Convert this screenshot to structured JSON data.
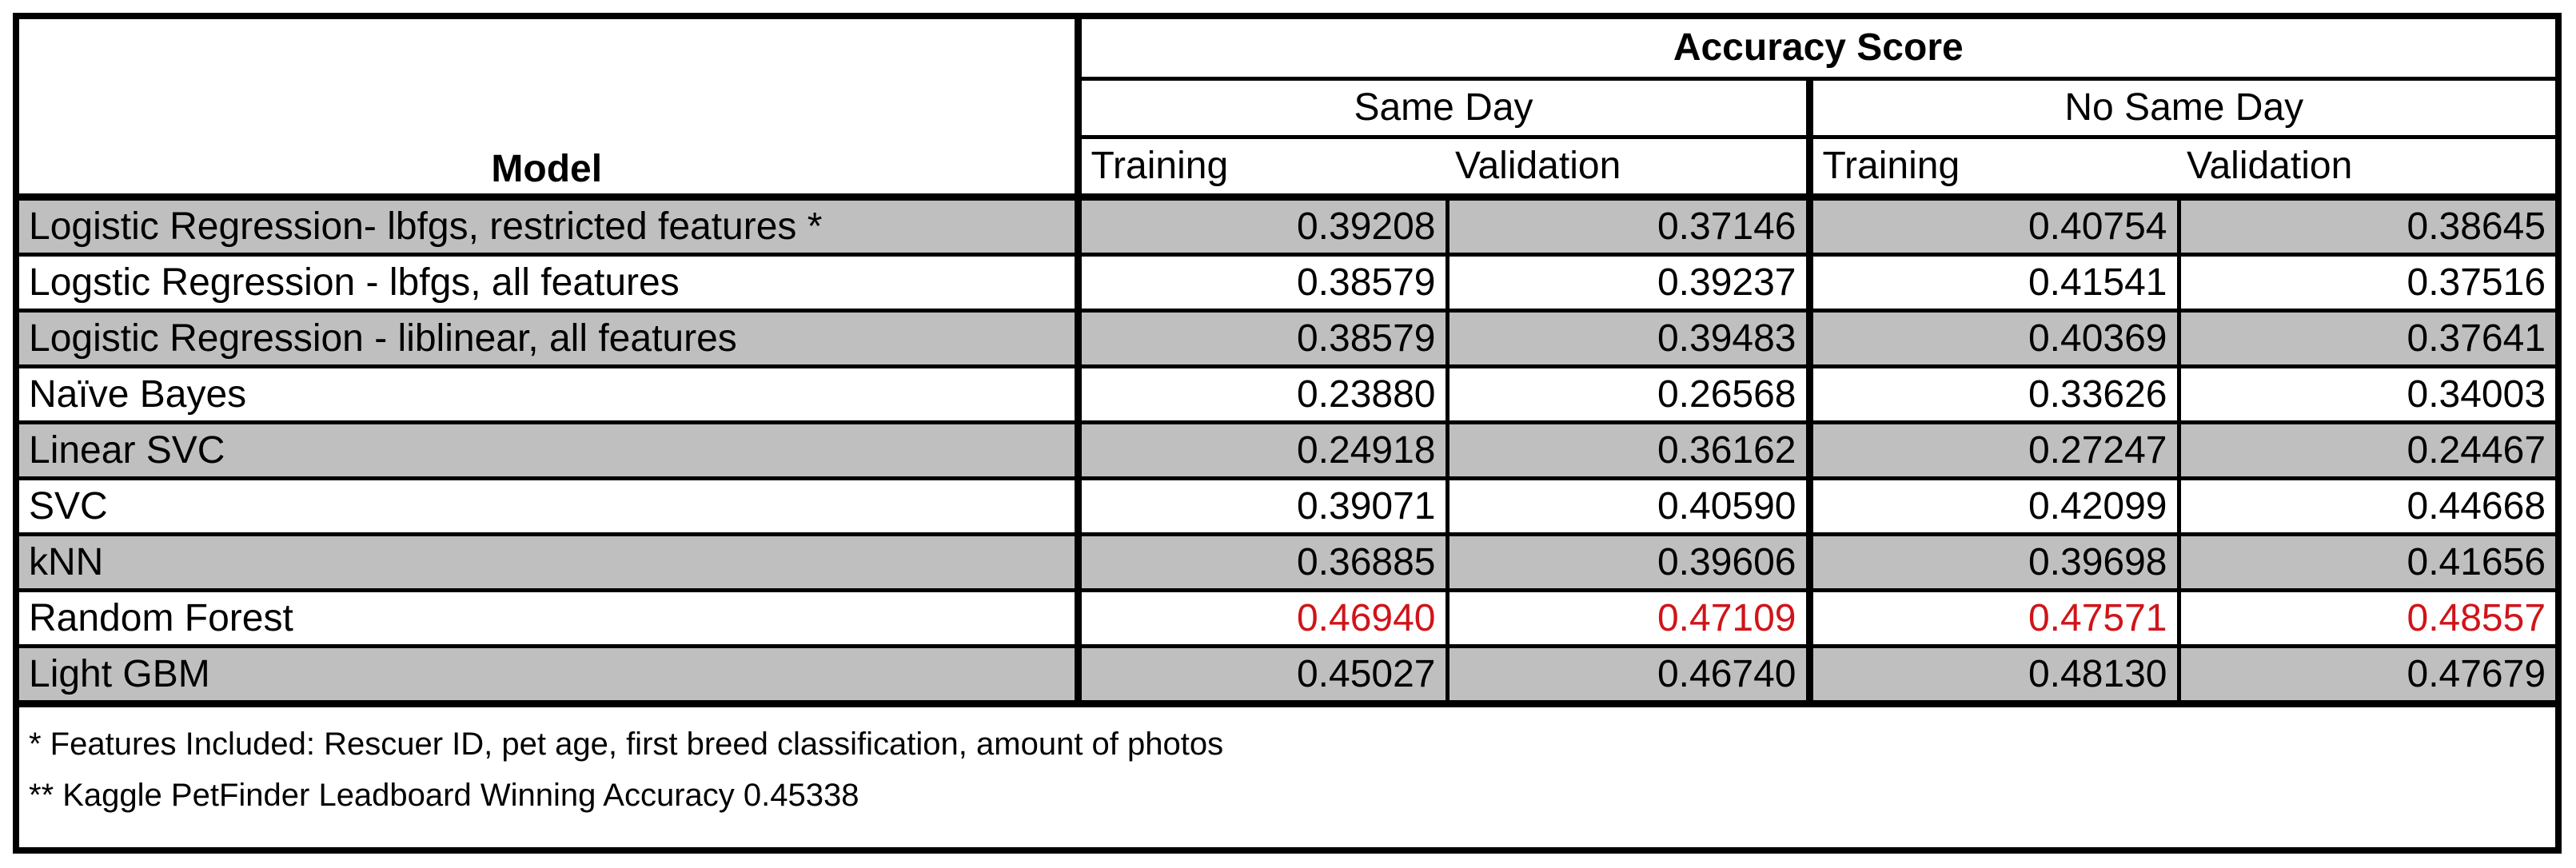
{
  "table": {
    "header": {
      "model": "Model",
      "group_title": "Accuracy Score",
      "subgroups": [
        "Same Day",
        "No Same Day"
      ],
      "columns": [
        "Training",
        "Validation",
        "Training",
        "Validation"
      ]
    },
    "rows": [
      {
        "model": "Logistic Regression- lbfgs, restricted features *",
        "values": [
          "0.39208",
          "0.37146",
          "0.40754",
          "0.38645"
        ],
        "shaded": true,
        "highlight": false
      },
      {
        "model": "Logstic Regression - lbfgs, all features",
        "values": [
          "0.38579",
          "0.39237",
          "0.41541",
          "0.37516"
        ],
        "shaded": false,
        "highlight": false
      },
      {
        "model": "Logistic Regression - liblinear, all features",
        "values": [
          "0.38579",
          "0.39483",
          "0.40369",
          "0.37641"
        ],
        "shaded": true,
        "highlight": false
      },
      {
        "model": "Naïve Bayes",
        "values": [
          "0.23880",
          "0.26568",
          "0.33626",
          "0.34003"
        ],
        "shaded": false,
        "highlight": false
      },
      {
        "model": "Linear SVC",
        "values": [
          "0.24918",
          "0.36162",
          "0.27247",
          "0.24467"
        ],
        "shaded": true,
        "highlight": false
      },
      {
        "model": "SVC",
        "values": [
          "0.39071",
          "0.40590",
          "0.42099",
          "0.44668"
        ],
        "shaded": false,
        "highlight": false
      },
      {
        "model": "kNN",
        "values": [
          "0.36885",
          "0.39606",
          "0.39698",
          "0.41656"
        ],
        "shaded": true,
        "highlight": false
      },
      {
        "model": "Random Forest",
        "values": [
          "0.46940",
          "0.47109",
          "0.47571",
          "0.48557"
        ],
        "shaded": false,
        "highlight": true
      },
      {
        "model": "Light GBM",
        "values": [
          "0.45027",
          "0.46740",
          "0.48130",
          "0.47679"
        ],
        "shaded": true,
        "highlight": false
      }
    ],
    "notes": [
      "* Features Included: Rescuer ID, pet age, first breed classification, amount of photos",
      "** Kaggle PetFinder Leadboard Winning Accuracy 0.45338"
    ],
    "colors": {
      "shade": "#bfbfbf",
      "highlight": "#d0141a",
      "border": "#000000"
    }
  }
}
